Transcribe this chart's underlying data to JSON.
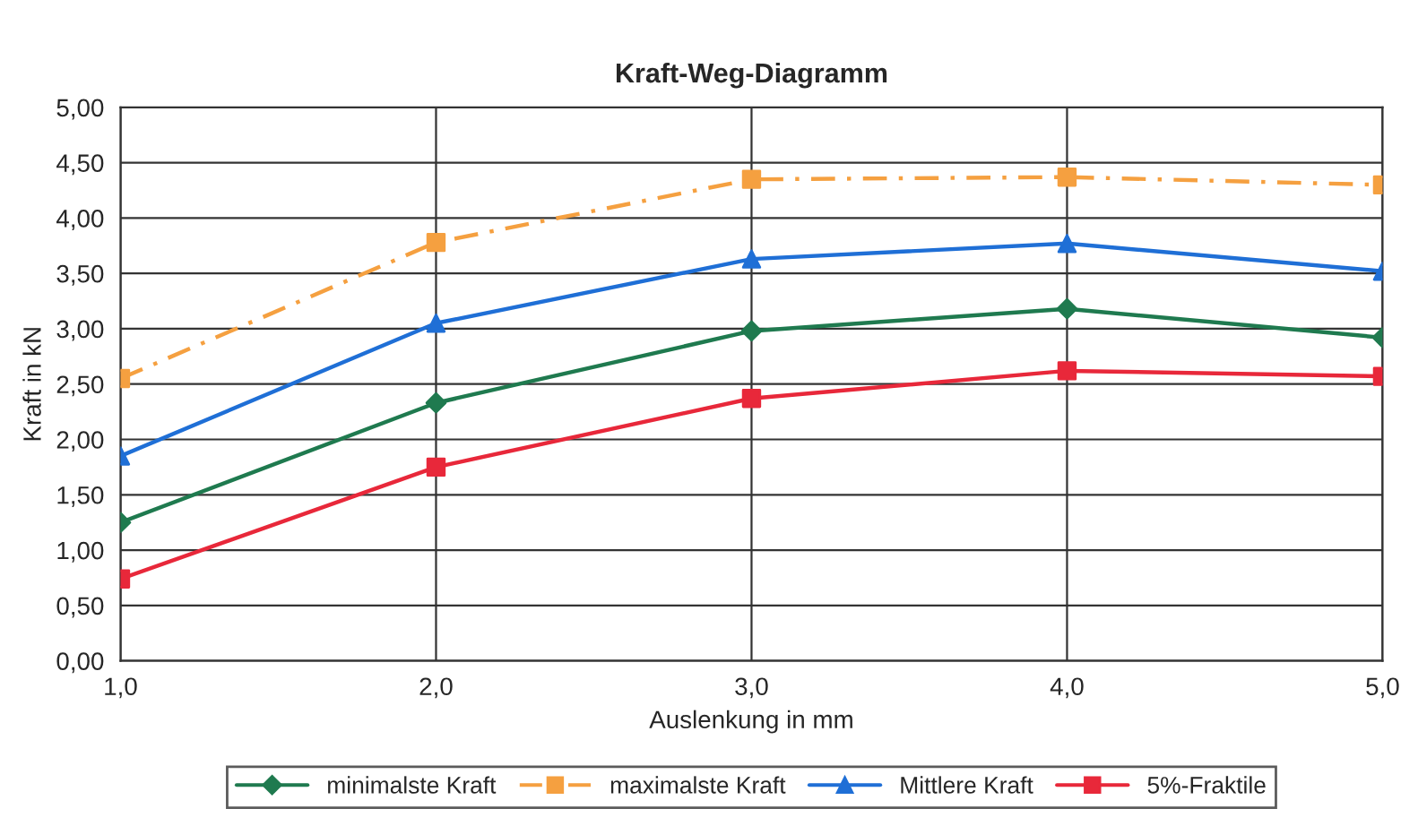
{
  "chart_data": {
    "type": "line",
    "title": "Kraft-Weg-Diagramm",
    "xlabel": "Auslenkung in mm",
    "ylabel": "Kraft in kN",
    "x": [
      1,
      2,
      3,
      4,
      5
    ],
    "series": [
      {
        "name": "minimalste Kraft",
        "color": "#1f7a4f",
        "marker": "diamond",
        "line_style": "solid",
        "values": [
          1.25,
          2.33,
          2.98,
          3.18,
          2.92
        ]
      },
      {
        "name": "maximalste Kraft",
        "color": "#f5a040",
        "marker": "square",
        "line_style": "dashed",
        "values": [
          2.55,
          3.78,
          4.35,
          4.37,
          4.3
        ]
      },
      {
        "name": "Mittlere Kraft",
        "color": "#1f6fd6",
        "marker": "triangle",
        "line_style": "solid",
        "values": [
          1.85,
          3.05,
          3.63,
          3.77,
          3.52
        ]
      },
      {
        "name": "5%-Fraktile",
        "color": "#e8283a",
        "marker": "square",
        "line_style": "solid",
        "values": [
          0.74,
          1.75,
          2.37,
          2.62,
          2.57
        ]
      }
    ],
    "xlim": [
      1,
      5
    ],
    "xticks": [
      {
        "value": 1,
        "label": "1,0"
      },
      {
        "value": 2,
        "label": "2,0"
      },
      {
        "value": 3,
        "label": "3,0"
      },
      {
        "value": 4,
        "label": "4,0"
      },
      {
        "value": 5,
        "label": "5,0"
      }
    ],
    "ylim": [
      0,
      5
    ],
    "yticks": [
      {
        "value": 0,
        "label": "0,00"
      },
      {
        "value": 0.5,
        "label": "0,50"
      },
      {
        "value": 1,
        "label": "1,00"
      },
      {
        "value": 1.5,
        "label": "1,50"
      },
      {
        "value": 2,
        "label": "2,00"
      },
      {
        "value": 2.5,
        "label": "2,50"
      },
      {
        "value": 3,
        "label": "3,00"
      },
      {
        "value": 3.5,
        "label": "3,50"
      },
      {
        "value": 4,
        "label": "4,00"
      },
      {
        "value": 4.5,
        "label": "4,50"
      },
      {
        "value": 5,
        "label": "5,00"
      }
    ],
    "grid": true,
    "legend": "bottom"
  }
}
